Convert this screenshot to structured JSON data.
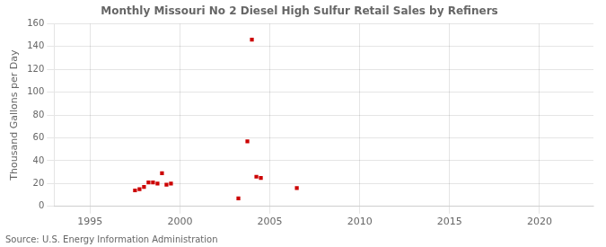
{
  "chart_data": {
    "type": "scatter",
    "title": "Monthly Missouri No 2 Diesel High Sulfur Retail Sales by Refiners",
    "y_label": "Thousand Gallons per Day",
    "annotations": [
      "Source: U.S. Energy Information Administration"
    ],
    "x": [
      1997.5,
      1997.75,
      1998.0,
      1998.25,
      1998.5,
      1998.75,
      1999.0,
      1999.25,
      1999.5,
      2003.25,
      2003.75,
      2004.0,
      2004.25,
      2004.5,
      2006.5
    ],
    "values": [
      14,
      15,
      17,
      21,
      21,
      20,
      29,
      19,
      20,
      7,
      57,
      146,
      26,
      25,
      16
    ],
    "color": "#cc0000",
    "marker": "square",
    "xlim": [
      1993,
      2023
    ],
    "xticks": [
      1995,
      2000,
      2005,
      2010,
      2015,
      2020
    ],
    "ylim": [
      0,
      160
    ],
    "yticks": [
      0,
      20,
      40,
      60,
      80,
      100,
      120,
      140,
      160
    ],
    "grid": true
  }
}
